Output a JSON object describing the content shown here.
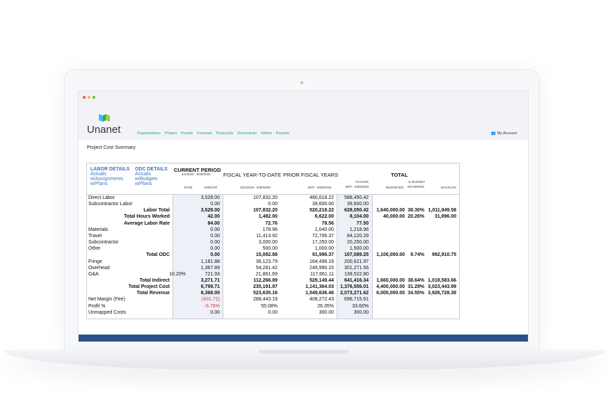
{
  "app": {
    "brand": "Unanet",
    "nav": [
      "Organizations",
      "Project",
      "People",
      "Forecast",
      "Financials",
      "Documents",
      "Admin",
      "Reports"
    ],
    "account": "My Account",
    "page_title": "Project Cost Summary",
    "colors": {
      "nav": "#2ba56a",
      "accent_bar": "#2d4e8c",
      "link": "#3d73c4",
      "negative": "#d43b3b"
    }
  },
  "table": {
    "labor_details": {
      "title": "LABOR DETAILS",
      "links": [
        "Actuals",
        "w/Assignments",
        "w/Plans"
      ]
    },
    "odc_details": {
      "title": "ODC DETAILS",
      "links": [
        "Actuals",
        "w/Budgets",
        "w/Plans"
      ]
    },
    "current_period": {
      "title": "CURRENT PERIOD",
      "range": "4/1/2020 - 6/30/2020",
      "rate": "RATE",
      "amount": "AMOUNT"
    },
    "fytd": {
      "title": "FISCAL YEAR-TO-DATE",
      "range": "10/1/2019 - 6/30/2020"
    },
    "pfy": {
      "title": "PRIOR FISCAL YEARS",
      "range": "BOT - 9/30/2019"
    },
    "total": {
      "title": "TOTAL",
      "todate1": "TO-DATE",
      "todate2": "BOT - 6/30/2020",
      "budgeted": "BUDGETED",
      "pct1": "% BUDGET",
      "pct2": "INCURRED",
      "backlog": "BACKLOG"
    },
    "rows": [
      {
        "label": "Direct Labor",
        "rate": "",
        "amount": "3,528.00",
        "fytd": "107,832.20",
        "pfy": "480,618.22",
        "todate": "588,450.42",
        "budgeted": "",
        "pct": "",
        "backlog": ""
      },
      {
        "label": "Subcontractor Labor",
        "rate": "",
        "amount": "0.00",
        "fytd": "0.00",
        "pfy": "39,600.00",
        "todate": "39,600.00",
        "budgeted": "",
        "pct": "",
        "backlog": ""
      },
      {
        "label": "Labor Total",
        "total": true,
        "rate": "",
        "amount": "3,528.00",
        "fytd": "107,832.20",
        "pfy": "520,218.22",
        "todate": "628,050.42",
        "budgeted": "1,640,000.00",
        "pct": "38.30%",
        "backlog": "1,011,949.58"
      },
      {
        "label": "Total Hours Worked",
        "total": true,
        "rate": "",
        "amount": "42.00",
        "fytd": "1,482.00",
        "pfy": "6,622.00",
        "todate": "8,104.00",
        "budgeted": "40,000.00",
        "pct": "20.26%",
        "backlog": "31,896.00"
      },
      {
        "label": "Average Labor Rate",
        "total": true,
        "rate": "",
        "amount": "84.00",
        "fytd": "72.76",
        "pfy": "78.56",
        "todate": "77.50",
        "budgeted": "",
        "pct": "",
        "backlog": ""
      },
      {
        "label": "Materials",
        "rate": "",
        "amount": "0.00",
        "fytd": "178.96",
        "pfy": "1,040.00",
        "todate": "1,218.96",
        "budgeted": "",
        "pct": "",
        "backlog": ""
      },
      {
        "label": "Travel",
        "rate": "",
        "amount": "0.00",
        "fytd": "11,413.92",
        "pfy": "72,706.37",
        "todate": "84,120.29",
        "budgeted": "",
        "pct": "",
        "backlog": ""
      },
      {
        "label": "Subcontractor",
        "rate": "",
        "amount": "0.00",
        "fytd": "3,000.00",
        "pfy": "17,250.00",
        "todate": "20,250.00",
        "budgeted": "",
        "pct": "",
        "backlog": ""
      },
      {
        "label": "Other",
        "rate": "",
        "amount": "0.00",
        "fytd": "500.00",
        "pfy": "1,000.00",
        "todate": "1,500.00",
        "budgeted": "",
        "pct": "",
        "backlog": ""
      },
      {
        "label": "Total ODC",
        "total": true,
        "rate": "",
        "amount": "0.00",
        "fytd": "15,092.88",
        "pfy": "91,996.37",
        "todate": "107,089.25",
        "budgeted": "1,100,000.00",
        "pct": "9.74%",
        "backlog": "992,910.75"
      },
      {
        "label": "Fringe",
        "rate": "",
        "amount": "1,181.88",
        "fytd": "36,123.79",
        "pfy": "164,498.19",
        "todate": "200,621.97",
        "budgeted": "",
        "pct": "",
        "backlog": ""
      },
      {
        "label": "Overhead",
        "rate": "",
        "amount": "1,367.89",
        "fytd": "54,281.42",
        "pfy": "246,990.15",
        "todate": "301,271.56",
        "budgeted": "",
        "pct": "",
        "backlog": ""
      },
      {
        "label": "G&A",
        "rate": "10.20%",
        "amount": "721.93",
        "fytd": "21,861.69",
        "pfy": "117,661.11",
        "todate": "139,522.80",
        "budgeted": "",
        "pct": "",
        "backlog": ""
      },
      {
        "label": "Total Indirect",
        "total": true,
        "rate": "",
        "amount": "3,271.71",
        "fytd": "112,266.89",
        "pfy": "529,149.44",
        "todate": "641,416.34",
        "budgeted": "1,660,000.00",
        "pct": "38.64%",
        "backlog": "1,018,583.66"
      },
      {
        "label": "Total Project Cost",
        "total": true,
        "rate": "",
        "amount": "6,799.71",
        "fytd": "235,191.97",
        "pfy": "1,141,364.03",
        "todate": "1,376,556.01",
        "budgeted": "4,400,000.00",
        "pct": "31.29%",
        "backlog": "3,023,443.99"
      },
      {
        "label": "Total Revenue",
        "total": true,
        "rate": "",
        "amount": "6,368.00",
        "fytd": "523,635.16",
        "pfy": "1,549,636.46",
        "todate": "2,073,271.62",
        "budgeted": "6,000,000.00",
        "pct": "34.55%",
        "backlog": "3,926,728.38"
      },
      {
        "label": "Net Margin (Fee)",
        "negative": true,
        "rate": "",
        "amount": "(431.71)",
        "fytd": "288,443.19",
        "pfy": "408,272.43",
        "todate": "696,715.61",
        "budgeted": "",
        "pct": "",
        "backlog": ""
      },
      {
        "label": "Profit %",
        "negative": true,
        "rate": "",
        "amount": "-6.78%",
        "fytd": "55.08%",
        "pfy": "26.35%",
        "todate": "33.60%",
        "budgeted": "",
        "pct": "",
        "backlog": ""
      },
      {
        "label": "Unmapped Costs",
        "rate": "",
        "amount": "0.00",
        "fytd": "0.00",
        "pfy": "300.00",
        "todate": "300.00",
        "budgeted": "",
        "pct": "",
        "backlog": ""
      }
    ]
  }
}
